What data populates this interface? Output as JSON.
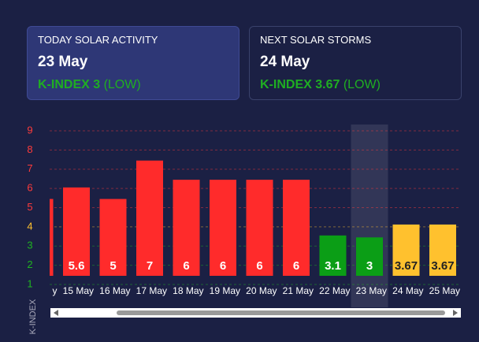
{
  "cards": [
    {
      "title": "TODAY SOLAR ACTIVITY",
      "date": "23 May",
      "index": "K-INDEX 3",
      "level": "(LOW)"
    },
    {
      "title": "NEXT SOLAR STORMS",
      "date": "24 May",
      "index": "K-INDEX 3.67",
      "level": "(LOW)"
    }
  ],
  "chart_data": {
    "type": "bar",
    "y_label": "K-INDEX",
    "categories": [
      "y",
      "15 May",
      "16 May",
      "17 May",
      "18 May",
      "19 May",
      "20 May",
      "21 May",
      "22 May",
      "23 May",
      "24 May",
      "25 May"
    ],
    "values": [
      5,
      5.6,
      5,
      7,
      6,
      6,
      6,
      6,
      3.1,
      3,
      3.67,
      3.67
    ],
    "colors": [
      "#ff2b2b",
      "#ff2b2b",
      "#ff2b2b",
      "#ff2b2b",
      "#ff2b2b",
      "#ff2b2b",
      "#ff2b2b",
      "#ff2b2b",
      "#0b9e16",
      "#0b9e16",
      "#ffc12e",
      "#ffc12e"
    ],
    "ylim": [
      1,
      9.8
    ],
    "yticks": [
      1,
      2,
      3,
      4,
      5,
      6,
      7,
      8,
      9
    ],
    "ytick_colors": [
      "#1fb51f",
      "#1fb51f",
      "#1fb51f",
      "#ffc12e",
      "#ff3b3b",
      "#ff3b3b",
      "#ff3b3b",
      "#ff3b3b",
      "#ff3b3b"
    ],
    "grid": true,
    "highlight_index": 9
  }
}
